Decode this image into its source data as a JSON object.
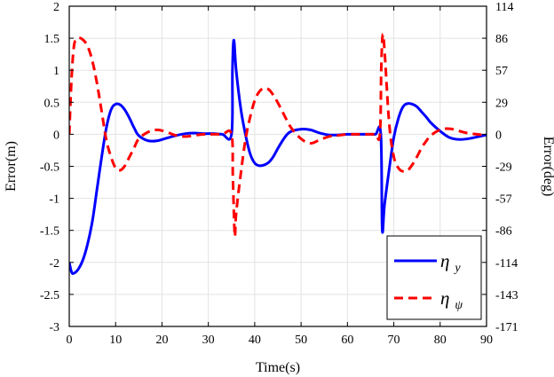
{
  "chart_data": {
    "type": "line",
    "xlabel": "Time(s)",
    "ylabel_left": "Error(m)",
    "ylabel_right": "Error(deg)",
    "xlim": [
      0,
      90
    ],
    "ylim_left": [
      -3,
      2
    ],
    "ylim_right": [
      -171,
      114
    ],
    "x_ticks": [
      0,
      10,
      20,
      30,
      40,
      50,
      60,
      70,
      80,
      90
    ],
    "y_ticks_left": [
      -3,
      -2.5,
      -2,
      -1.5,
      -1,
      -0.5,
      0,
      0.5,
      1,
      1.5,
      2
    ],
    "y_tick_labels_left": [
      "-3",
      "-2.5",
      "-2",
      "-1.5",
      "-1",
      "-0.5",
      "0",
      "0.5",
      "1",
      "1.5",
      "2"
    ],
    "y_tick_labels_right": [
      "-171",
      "-143",
      "-114",
      "-86",
      "-57",
      "-29",
      "0",
      "29",
      "57",
      "86",
      "114"
    ],
    "grid": true,
    "legend_position": "bottom-right",
    "series": [
      {
        "name": "η_y",
        "legend_main": "η",
        "legend_sub": "y",
        "axis": "left",
        "color": "#0000ff",
        "style": "solid",
        "x": [
          0,
          0.5,
          1,
          2,
          3,
          4,
          5,
          6,
          7,
          8,
          9,
          10,
          11,
          12,
          13,
          14,
          15,
          17,
          19,
          21,
          23,
          25,
          27,
          29,
          31,
          33,
          35,
          35.2,
          35.5,
          36,
          37,
          38,
          39,
          40,
          41,
          42,
          43,
          44,
          45,
          46,
          47,
          48,
          50,
          52,
          54,
          56,
          58,
          60,
          62,
          64,
          66,
          67.2,
          67.5,
          68,
          69,
          70,
          71,
          72,
          73,
          74,
          75,
          76,
          77,
          78,
          80,
          82,
          84,
          86,
          88,
          90
        ],
        "y": [
          -2.0,
          -2.15,
          -2.17,
          -2.1,
          -1.95,
          -1.7,
          -1.35,
          -0.85,
          -0.35,
          0.1,
          0.38,
          0.47,
          0.46,
          0.38,
          0.25,
          0.1,
          -0.02,
          -0.1,
          -0.1,
          -0.06,
          -0.02,
          0.01,
          0.02,
          0.01,
          0.01,
          0.0,
          0.0,
          1.0,
          1.47,
          1.0,
          0.4,
          0.0,
          -0.3,
          -0.45,
          -0.49,
          -0.48,
          -0.44,
          -0.35,
          -0.22,
          -0.1,
          0.0,
          0.05,
          0.08,
          0.07,
          0.02,
          -0.01,
          -0.01,
          0.0,
          0.0,
          0.0,
          0.0,
          0.0,
          -1.48,
          -1.1,
          -0.55,
          -0.05,
          0.25,
          0.43,
          0.48,
          0.47,
          0.43,
          0.35,
          0.27,
          0.18,
          0.05,
          -0.05,
          -0.08,
          -0.07,
          -0.04,
          -0.01
        ]
      },
      {
        "name": "η_ψ",
        "legend_main": "η",
        "legend_sub": "ψ",
        "axis": "right",
        "color": "#ff0000",
        "style": "dashed",
        "x": [
          0,
          0.5,
          1,
          1.5,
          2,
          3,
          4,
          5,
          6,
          7,
          8,
          9,
          10,
          11,
          12,
          13,
          14,
          15,
          17,
          19,
          21,
          23,
          25,
          27,
          29,
          31,
          33,
          35,
          35.3,
          35.7,
          36,
          37,
          38,
          39,
          40,
          41,
          42,
          43,
          44,
          45,
          46,
          47,
          48,
          50,
          52,
          54,
          56,
          58,
          60,
          62,
          64,
          66,
          67,
          67.3,
          67.6,
          68,
          69,
          70,
          71,
          72,
          73,
          74,
          75,
          76,
          77,
          78,
          80,
          82,
          84,
          86,
          88,
          90
        ],
        "y": [
          0,
          50,
          78,
          84,
          86,
          84,
          78,
          65,
          45,
          20,
          -5,
          -20,
          -30,
          -32,
          -28,
          -20,
          -12,
          -4,
          2,
          4,
          2,
          -1,
          -2,
          -1,
          0,
          0,
          0,
          0,
          -40,
          -90,
          -70,
          -35,
          -5,
          15,
          30,
          38,
          41,
          40,
          35,
          28,
          20,
          12,
          5,
          -4,
          -8,
          -5,
          -2,
          -1,
          0,
          0,
          0,
          0,
          0,
          60,
          88,
          75,
          10,
          -20,
          -30,
          -33,
          -32,
          -27,
          -20,
          -12,
          -6,
          -1,
          4,
          5,
          3,
          1,
          0,
          -1
        ]
      }
    ]
  }
}
